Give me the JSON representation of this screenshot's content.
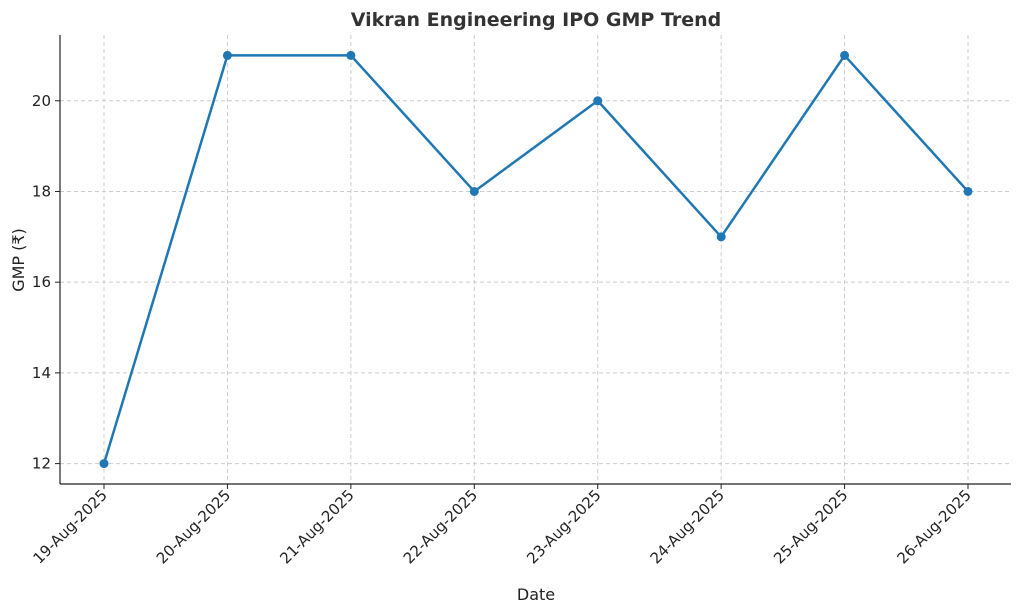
{
  "chart_data": {
    "type": "line",
    "title": "Vikran Engineering IPO GMP Trend",
    "xlabel": "Date",
    "ylabel": "GMP (₹)",
    "categories": [
      "19-Aug-2025",
      "20-Aug-2025",
      "21-Aug-2025",
      "22-Aug-2025",
      "23-Aug-2025",
      "24-Aug-2025",
      "25-Aug-2025",
      "26-Aug-2025"
    ],
    "series": [
      {
        "values": [
          12,
          21,
          21,
          18,
          20,
          17,
          21,
          18
        ],
        "color": "#1f77b4"
      }
    ],
    "yticks": [
      12,
      14,
      16,
      18,
      20
    ],
    "ylim": [
      11.55,
      21.45
    ],
    "grid": true,
    "legend": "none"
  }
}
